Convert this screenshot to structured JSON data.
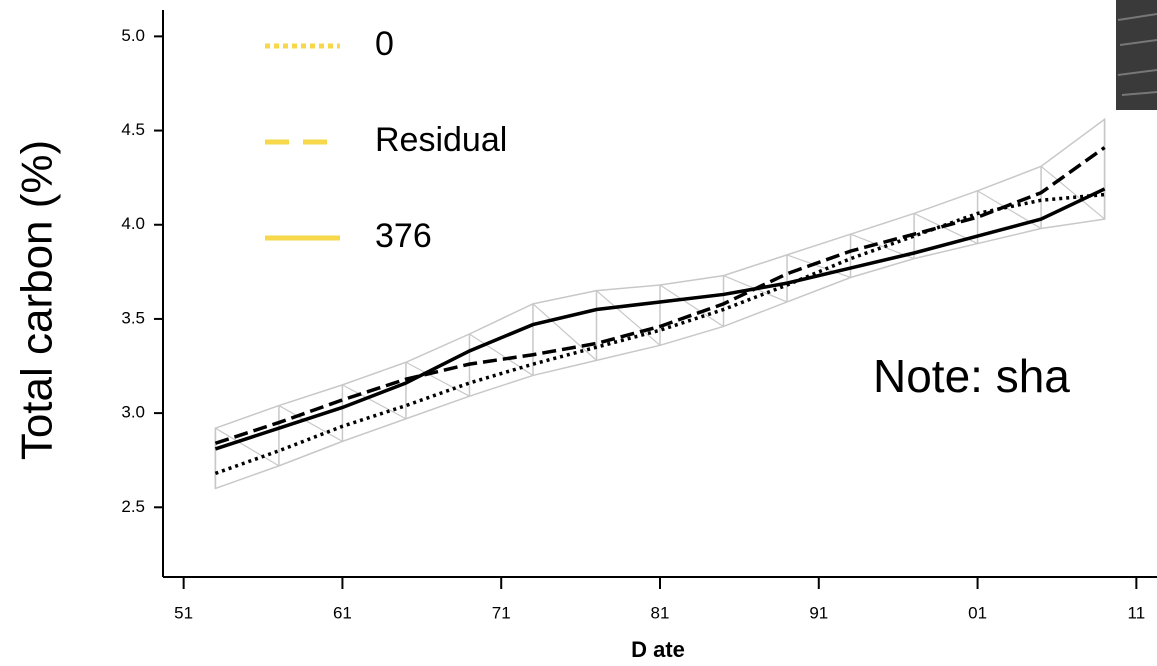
{
  "chart_data": {
    "type": "line",
    "y_label": "Total carbon (%)",
    "x_label": "D ate",
    "note": "Note: sha",
    "x": [
      53,
      57,
      61,
      65,
      69,
      73,
      77,
      81,
      85,
      89,
      93,
      97,
      101,
      105,
      109
    ],
    "series": [
      {
        "name": "0",
        "color": "#000000",
        "style": "dotted",
        "values": [
          2.68,
          2.8,
          2.93,
          3.04,
          3.16,
          3.26,
          3.35,
          3.44,
          3.55,
          3.68,
          3.82,
          3.94,
          4.06,
          4.13,
          4.16
        ]
      },
      {
        "name": "Residual",
        "color": "#000000",
        "style": "dashed",
        "values": [
          2.84,
          2.95,
          3.07,
          3.18,
          3.26,
          3.31,
          3.37,
          3.46,
          3.58,
          3.74,
          3.86,
          3.95,
          4.04,
          4.17,
          4.41
        ]
      },
      {
        "name": "376",
        "color": "#000000",
        "style": "solid",
        "values": [
          2.81,
          2.92,
          3.03,
          3.16,
          3.33,
          3.47,
          3.55,
          3.59,
          3.63,
          3.69,
          3.77,
          3.85,
          3.94,
          4.03,
          4.19
        ]
      }
    ],
    "band": {
      "color": "#c8c8c8",
      "upper": [
        2.92,
        3.04,
        3.15,
        3.27,
        3.42,
        3.58,
        3.65,
        3.68,
        3.73,
        3.84,
        3.95,
        4.06,
        4.18,
        4.31,
        4.56
      ],
      "lower": [
        2.6,
        2.72,
        2.85,
        2.97,
        3.09,
        3.2,
        3.28,
        3.36,
        3.46,
        3.59,
        3.72,
        3.82,
        3.9,
        3.98,
        4.03
      ]
    },
    "legend_color": "#f7d84b",
    "xlim": [
      49.7,
      112.3
    ],
    "xticks": [
      51,
      61,
      71,
      81,
      91,
      {
        "value": 101,
        "label": "01"
      },
      {
        "value": 111,
        "label": "11"
      }
    ],
    "ylim": [
      2.13,
      5.14
    ],
    "yticks": [
      {
        "value": 2.5,
        "label": "2.5"
      },
      {
        "value": 3,
        "label": "3.0"
      },
      {
        "value": 3.5,
        "label": "3.5"
      },
      {
        "value": 4,
        "label": "4.0"
      },
      {
        "value": 4.5,
        "label": "4.5"
      },
      {
        "value": 5,
        "label": "5.0"
      }
    ]
  }
}
